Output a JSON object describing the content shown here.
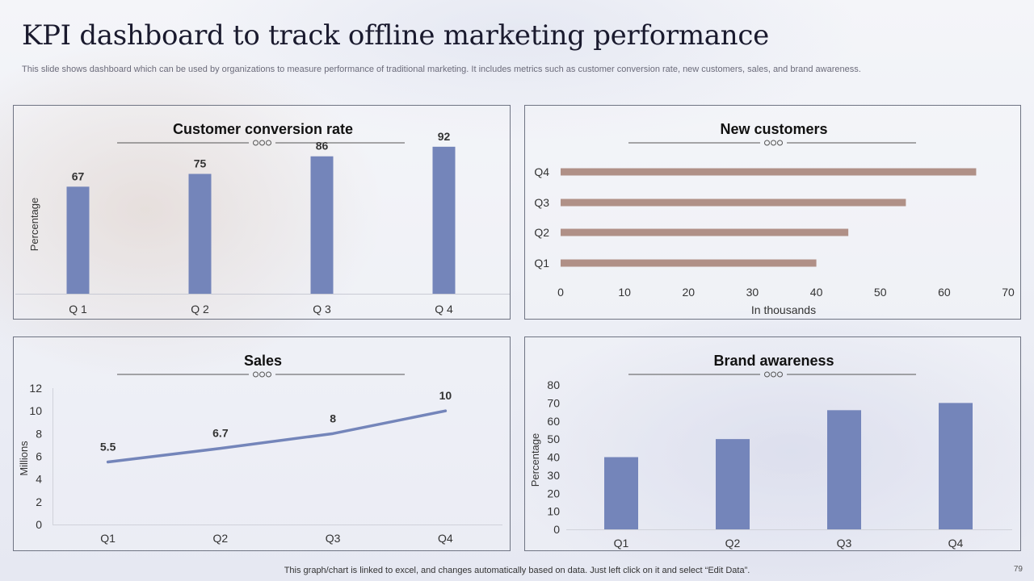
{
  "header": {
    "title": "KPI dashboard to track offline marketing performance",
    "subtitle": "This slide shows dashboard which can be used by organizations to measure performance of traditional marketing. It includes metrics such as customer conversion rate, new customers, sales, and brand awareness."
  },
  "footer": {
    "note": "This graph/chart is linked to excel,  and changes automatically based on data. Just left click on it and select “Edit Data”.",
    "page_number": "79"
  },
  "colors": {
    "bar": "#7485ba",
    "hbar": "#b09087",
    "line": "#7485ba",
    "divider": "#555555"
  },
  "chart_data": [
    {
      "id": "conversion",
      "type": "bar",
      "title": "Customer conversion rate",
      "categories": [
        "Q 1",
        "Q 2",
        "Q 3",
        "Q 4"
      ],
      "values": [
        67,
        75,
        86,
        92
      ],
      "ylabel": "Percentage",
      "xlabel": "",
      "ylim": [
        0,
        100
      ],
      "show_y_axis": false
    },
    {
      "id": "new_customers",
      "type": "bar",
      "orientation": "horizontal",
      "title": "New customers",
      "categories": [
        "Q1",
        "Q2",
        "Q3",
        "Q4"
      ],
      "values": [
        40,
        45,
        54,
        65
      ],
      "xlabel": "In  thousands",
      "xlim": [
        0,
        70
      ],
      "xticks": [
        "0",
        "10",
        "20",
        "30",
        "40",
        "50",
        "60",
        "70"
      ]
    },
    {
      "id": "sales",
      "type": "line",
      "title": "Sales",
      "categories": [
        "Q1",
        "Q2",
        "Q3",
        "Q4"
      ],
      "values": [
        5.5,
        6.7,
        8,
        10
      ],
      "value_labels": [
        "5.5",
        "6.7",
        "8",
        "10"
      ],
      "ylabel": "Millions",
      "ylim": [
        0,
        12
      ],
      "yticks": [
        "0",
        "2",
        "4",
        "6",
        "8",
        "10",
        "12"
      ]
    },
    {
      "id": "brand",
      "type": "bar",
      "title": "Brand awareness",
      "categories": [
        "Q1",
        "Q2",
        "Q3",
        "Q4"
      ],
      "values": [
        40,
        50,
        66,
        70
      ],
      "ylabel": "Percentage",
      "ylim": [
        0,
        80
      ],
      "yticks": [
        "0",
        "10",
        "20",
        "30",
        "40",
        "50",
        "60",
        "70",
        "80"
      ]
    }
  ]
}
